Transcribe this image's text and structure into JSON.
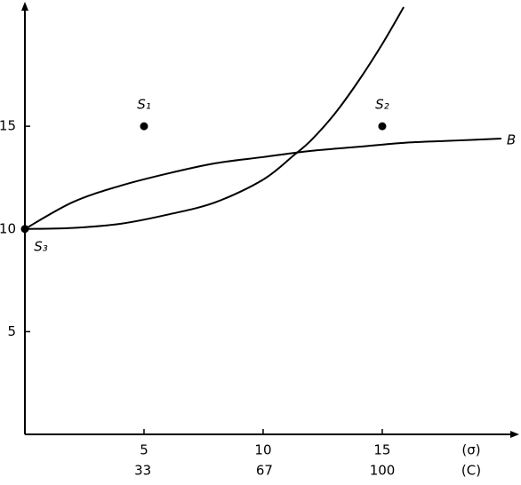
{
  "chart_data": {
    "type": "line",
    "x_label": "(σ)",
    "x2_label": "(C)",
    "xlim": [
      0,
      20.6
    ],
    "xticks": [
      5,
      10,
      15
    ],
    "x2lim": [
      0,
      137.3
    ],
    "x2ticks": [
      33,
      67,
      100
    ],
    "ylim": [
      0,
      20.8
    ],
    "yticks": [
      5,
      10,
      15
    ],
    "color": "#000000",
    "series": [
      {
        "name": "B",
        "x": [
          0,
          2,
          4,
          6,
          8,
          10,
          12,
          14,
          16,
          18,
          20
        ],
        "values": [
          10,
          11.3,
          12.1,
          12.7,
          13.2,
          13.5,
          13.8,
          14.0,
          14.2,
          14.3,
          14.4
        ]
      },
      {
        "x": [
          0,
          2,
          4,
          6,
          8,
          10,
          11.3,
          12,
          13,
          14,
          15,
          15.9
        ],
        "values": [
          10,
          10.05,
          10.25,
          10.7,
          11.3,
          12.4,
          13.6,
          14.3,
          15.6,
          17.2,
          19.0,
          20.8
        ]
      }
    ],
    "points": [
      {
        "label": "S₁",
        "x": 5,
        "y": 15
      },
      {
        "label": "S₂",
        "x": 15,
        "y": 15
      },
      {
        "label": "S₃",
        "x": 0,
        "y": 10
      }
    ]
  }
}
